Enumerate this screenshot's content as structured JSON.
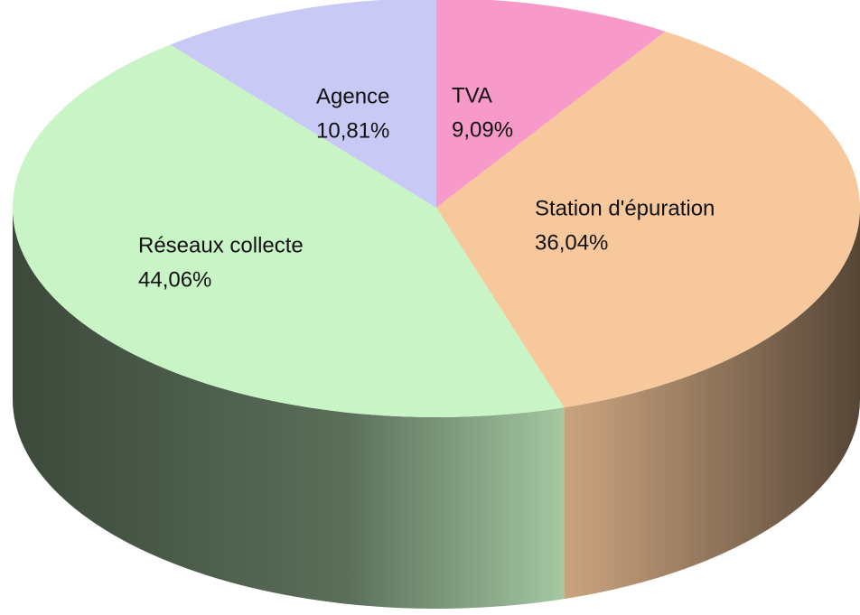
{
  "chart_data": {
    "type": "pie3d",
    "categories": [
      "TVA",
      "Station d'épuration",
      "Réseaux collecte",
      "Agence"
    ],
    "values": [
      9.09,
      36.04,
      44.06,
      10.81
    ],
    "value_labels": [
      "9,09%",
      "36,04%",
      "44,06%",
      "10,81%"
    ],
    "colors": [
      "#f799c9",
      "#f7c89b",
      "#c8f4c6",
      "#c9c9f5"
    ]
  }
}
